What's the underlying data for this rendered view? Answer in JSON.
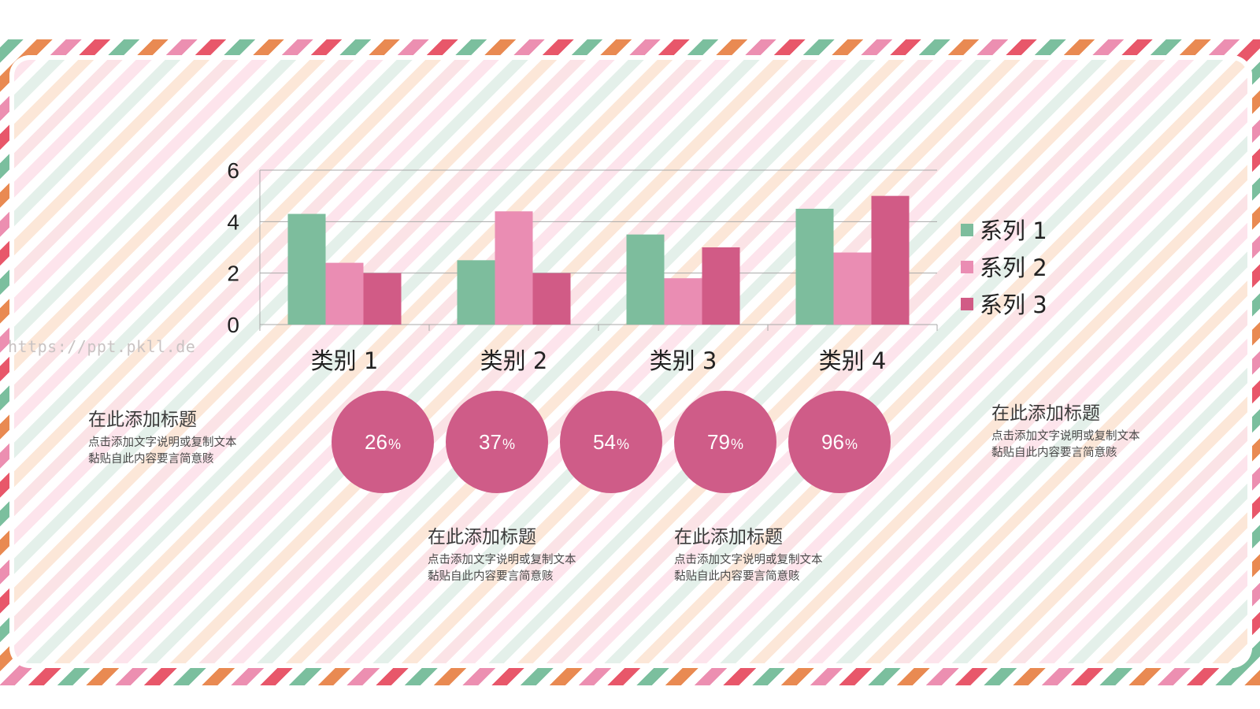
{
  "watermark": "https://ppt.pkll.de",
  "chart_data": {
    "type": "bar",
    "categories": [
      "类别 1",
      "类别 2",
      "类别 3",
      "类别 4"
    ],
    "series": [
      {
        "name": "系列 1",
        "color": "#7dbd9d",
        "values": [
          4.3,
          2.5,
          3.5,
          4.5
        ]
      },
      {
        "name": "系列 2",
        "color": "#ea8db3",
        "values": [
          2.4,
          4.4,
          1.8,
          2.8
        ]
      },
      {
        "name": "系列 3",
        "color": "#d15b86",
        "values": [
          2.0,
          2.0,
          3.0,
          5.0
        ]
      }
    ],
    "yticks": [
      0,
      2,
      4,
      6
    ],
    "ylim": [
      0,
      6
    ],
    "grid": true,
    "legend": "right"
  },
  "bubbles": [
    {
      "value": "26",
      "suffix": "%"
    },
    {
      "value": "37",
      "suffix": "%"
    },
    {
      "value": "54",
      "suffix": "%"
    },
    {
      "value": "79",
      "suffix": "%"
    },
    {
      "value": "96",
      "suffix": "%"
    }
  ],
  "blocks": [
    {
      "title": "在此添加标题",
      "desc": "点击添加文字说明或复制文本黏贴自此内容要言简意赅"
    },
    {
      "title": "在此添加标题",
      "desc": "点击添加文字说明或复制文本黏贴自此内容要言简意赅"
    },
    {
      "title": "在此添加标题",
      "desc": "点击添加文字说明或复制文本黏贴自此内容要言简意赅"
    },
    {
      "title": "在此添加标题",
      "desc": "点击添加文字说明或复制文本黏贴自此内容要言简意赅"
    }
  ]
}
